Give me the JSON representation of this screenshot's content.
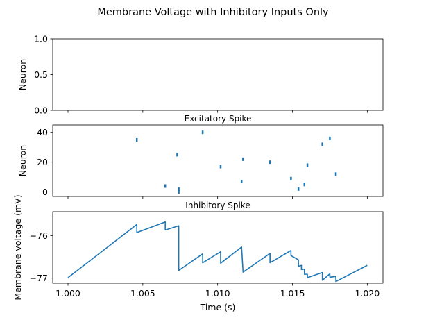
{
  "chart_data": {
    "type": "figure",
    "title": "Membrane Voltage with Inhibitory Inputs Only",
    "colors": {
      "series": "#1f77b4",
      "axes": "#000000",
      "background": "#ffffff"
    },
    "xlabel": "Time (s)",
    "x_ticks": [
      "1.000",
      "1.005",
      "1.010",
      "1.015",
      "1.020"
    ],
    "x_tick_values": [
      1.0,
      1.005,
      1.01,
      1.015,
      1.02
    ],
    "xlim": [
      0.99898,
      1.02105
    ],
    "panels": [
      {
        "type": "scatter",
        "title": "",
        "ylabel": "Neuron",
        "ylim": [
          0,
          1
        ],
        "y_ticks": [
          "0.0",
          "0.5",
          "1.0"
        ],
        "y_tick_values": [
          0,
          0.5,
          1
        ],
        "points": []
      },
      {
        "type": "scatter",
        "title": "Excitatory Spike",
        "ylabel": "Neuron",
        "ylim": [
          -3,
          45
        ],
        "y_ticks": [
          "0",
          "20",
          "40"
        ],
        "y_tick_values": [
          0,
          20,
          40
        ],
        "points": [
          [
            1.0046,
            35
          ],
          [
            1.0065,
            4
          ],
          [
            1.0073,
            25
          ],
          [
            1.0074,
            2
          ],
          [
            1.0074,
            0
          ],
          [
            1.009,
            40
          ],
          [
            1.0102,
            17
          ],
          [
            1.0116,
            7
          ],
          [
            1.0117,
            22
          ],
          [
            1.0135,
            20
          ],
          [
            1.0149,
            9
          ],
          [
            1.0154,
            2
          ],
          [
            1.0158,
            5
          ],
          [
            1.016,
            18
          ],
          [
            1.017,
            32
          ],
          [
            1.0175,
            36
          ],
          [
            1.0179,
            12
          ]
        ]
      },
      {
        "type": "line",
        "title": "Inhibitory Spike",
        "ylabel": "Membrane voltage (mV)",
        "ylim": [
          -77.12,
          -75.44
        ],
        "y_ticks": [
          "−76",
          "−77"
        ],
        "y_tick_values": [
          -76,
          -77
        ],
        "x": [
          1.0,
          1.0046,
          1.0046,
          1.0065,
          1.0065,
          1.0074,
          1.0074,
          1.009,
          1.009,
          1.0102,
          1.0102,
          1.0116,
          1.0117,
          1.0135,
          1.0135,
          1.0149,
          1.0149,
          1.0154,
          1.0154,
          1.0156,
          1.0156,
          1.0158,
          1.0158,
          1.016,
          1.016,
          1.017,
          1.017,
          1.0175,
          1.0175,
          1.0179,
          1.0179,
          1.02
        ],
        "y": [
          -76.99,
          -75.74,
          -75.93,
          -75.68,
          -75.87,
          -75.77,
          -76.82,
          -76.43,
          -76.64,
          -76.38,
          -76.65,
          -76.27,
          -76.86,
          -76.42,
          -76.64,
          -76.35,
          -76.47,
          -76.57,
          -76.72,
          -76.7,
          -76.8,
          -76.79,
          -76.91,
          -76.91,
          -76.99,
          -76.87,
          -77.05,
          -76.9,
          -76.98,
          -76.96,
          -77.08,
          -76.7
        ]
      }
    ]
  }
}
